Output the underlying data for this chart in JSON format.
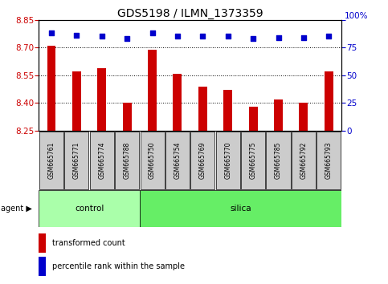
{
  "title": "GDS5198 / ILMN_1373359",
  "samples": [
    "GSM665761",
    "GSM665771",
    "GSM665774",
    "GSM665788",
    "GSM665750",
    "GSM665754",
    "GSM665769",
    "GSM665770",
    "GSM665775",
    "GSM665785",
    "GSM665792",
    "GSM665793"
  ],
  "groups": [
    "control",
    "control",
    "control",
    "control",
    "silica",
    "silica",
    "silica",
    "silica",
    "silica",
    "silica",
    "silica",
    "silica"
  ],
  "transformed_count": [
    8.71,
    8.57,
    8.59,
    8.4,
    8.69,
    8.56,
    8.49,
    8.47,
    8.38,
    8.42,
    8.4,
    8.57
  ],
  "percentile_rank": [
    88,
    86,
    85,
    83,
    88,
    85,
    85,
    85,
    83,
    84,
    84,
    85
  ],
  "ylim_left": [
    8.25,
    8.85
  ],
  "ylim_right": [
    0,
    100
  ],
  "yticks_left": [
    8.25,
    8.4,
    8.55,
    8.7,
    8.85
  ],
  "yticks_right": [
    0,
    25,
    50,
    75,
    100
  ],
  "grid_values": [
    8.4,
    8.55,
    8.7
  ],
  "bar_color": "#cc0000",
  "dot_color": "#0000cc",
  "bar_bottom": 8.25,
  "bar_width": 0.35,
  "n_control": 4,
  "n_silica": 8,
  "control_color": "#aaffaa",
  "silica_color": "#66ee66",
  "label_bg_color": "#cccccc",
  "legend_bar_label": "transformed count",
  "legend_dot_label": "percentile rank within the sample",
  "title_fontsize": 10,
  "tick_fontsize": 7.5,
  "label_fontsize": 5.5,
  "agent_fontsize": 7,
  "group_fontsize": 7.5,
  "legend_fontsize": 7,
  "axis_color_left": "#cc0000",
  "axis_color_right": "#0000cc"
}
